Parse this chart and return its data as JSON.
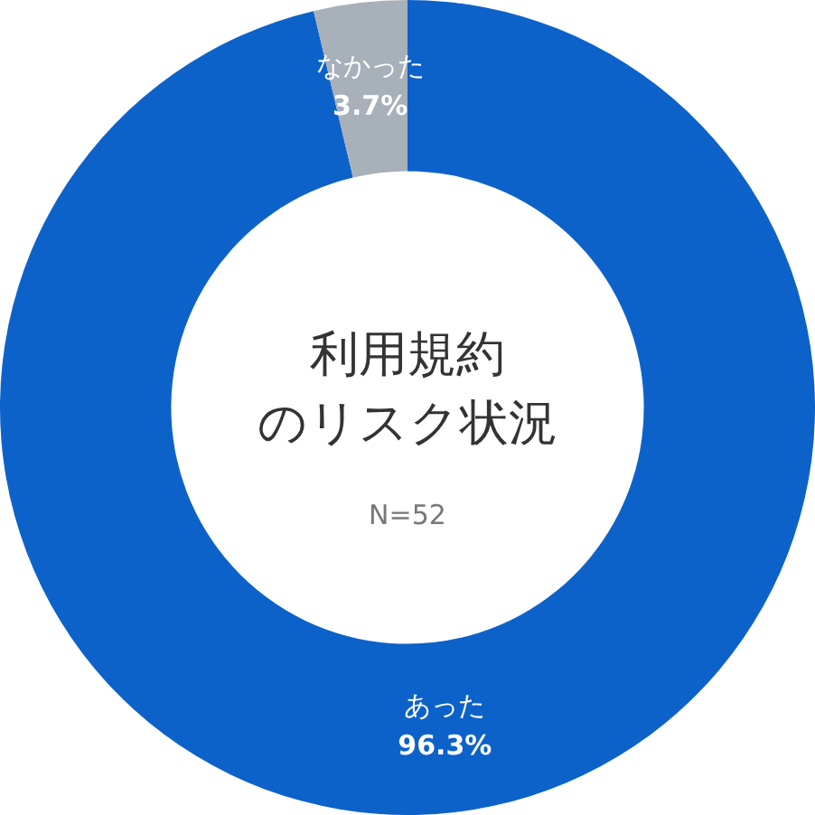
{
  "chart_data": {
    "type": "donut",
    "title": "利用規約",
    "subtitle": "のリスク状況",
    "annotations": [
      "N=52"
    ],
    "categories": [
      "あった",
      "なかった"
    ],
    "values": [
      96.3,
      3.7
    ],
    "colors": [
      "#0d62c9",
      "#a8b0b9"
    ],
    "value_labels": [
      "96.3%",
      "3.7%"
    ],
    "legend": false
  }
}
